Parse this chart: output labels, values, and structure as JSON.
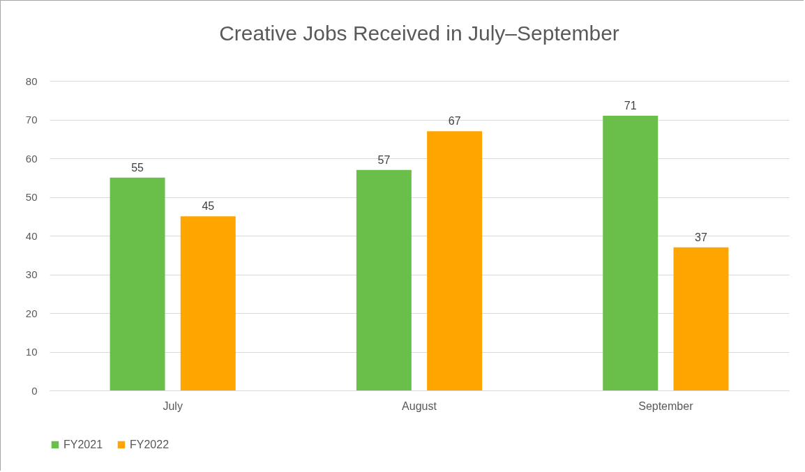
{
  "chart_data": {
    "type": "bar",
    "title": "Creative Jobs Received in July–September",
    "categories": [
      "July",
      "August",
      "September"
    ],
    "series": [
      {
        "name": "FY2021",
        "color": "#6abf4b",
        "values": [
          55,
          57,
          71
        ]
      },
      {
        "name": "FY2022",
        "color": "#ffa500",
        "values": [
          45,
          67,
          37
        ]
      }
    ],
    "ylim": [
      0,
      80
    ],
    "yticks": [
      0,
      10,
      20,
      30,
      40,
      50,
      60,
      70,
      80
    ],
    "grid": "y",
    "legend": "bottom",
    "data_labels": true
  }
}
